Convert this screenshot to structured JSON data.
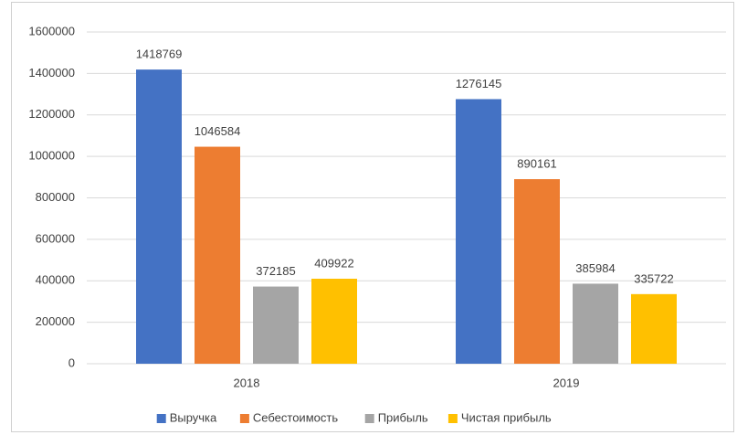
{
  "chart_data": {
    "type": "bar",
    "categories": [
      "2018",
      "2019"
    ],
    "series": [
      {
        "name": "Выручка",
        "color": "#4472c4",
        "values": [
          1418769,
          1276145
        ]
      },
      {
        "name": "Себестоимость",
        "color": "#ed7d31",
        "values": [
          1046584,
          890161
        ]
      },
      {
        "name": "Прибыль",
        "color": "#a5a5a5",
        "values": [
          372185,
          385984
        ]
      },
      {
        "name": "Чистая прибыль",
        "color": "#ffc000",
        "values": [
          409922,
          335722
        ]
      }
    ],
    "ylim": [
      0,
      1600000
    ],
    "yticks": [
      0,
      200000,
      400000,
      600000,
      800000,
      1000000,
      1200000,
      1400000,
      1600000
    ],
    "grid": true,
    "legend": "bottom"
  }
}
